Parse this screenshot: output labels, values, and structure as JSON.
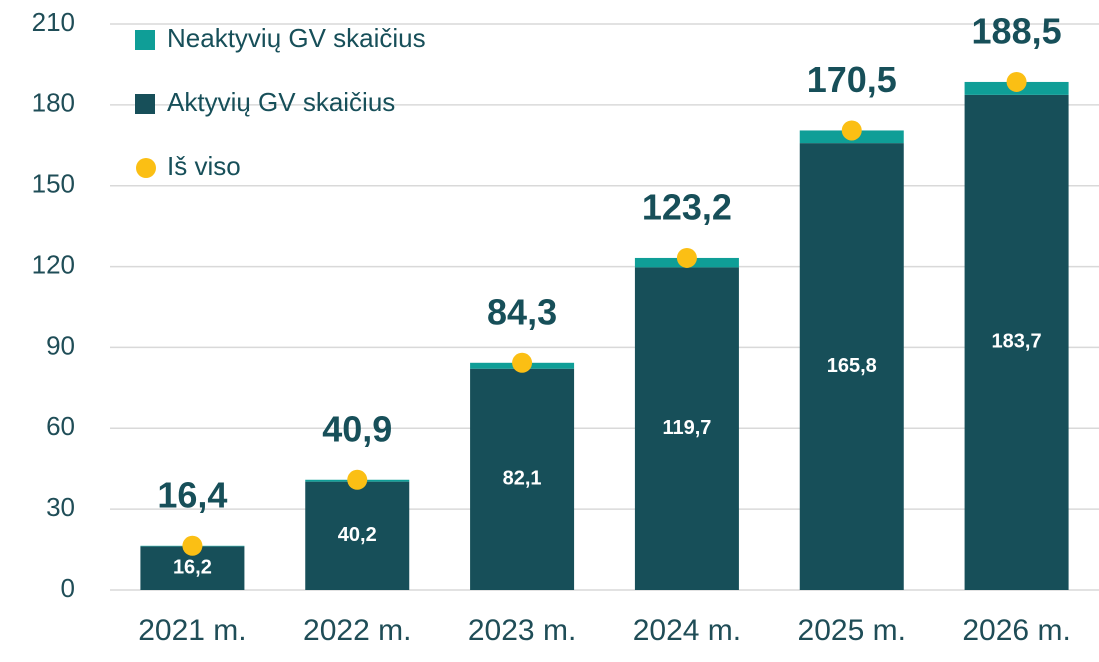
{
  "chart_data": {
    "type": "bar",
    "stacked": true,
    "categories": [
      "2021 m.",
      "2022 m.",
      "2023 m.",
      "2024 m.",
      "2025 m.",
      "2026 m."
    ],
    "series": [
      {
        "name": "Neaktyvių GV skaičius",
        "color": "#0f9e97",
        "values": [
          0.2,
          0.7,
          2.2,
          3.5,
          4.7,
          4.8
        ]
      },
      {
        "name": "Aktyvių GV skaičius",
        "color": "#174f59",
        "values": [
          16.2,
          40.2,
          82.1,
          119.7,
          165.8,
          183.7
        ],
        "value_labels": [
          "16,2",
          "40,2",
          "82,1",
          "119,7",
          "165,8",
          "183,7"
        ]
      },
      {
        "name": "Iš viso",
        "color": "#fbbf14",
        "type": "dot",
        "values": [
          16.4,
          40.9,
          84.3,
          123.2,
          170.5,
          188.5
        ],
        "value_labels": [
          "16,4",
          "40,9",
          "84,3",
          "123,2",
          "170,5",
          "188,5"
        ]
      }
    ],
    "ylim": [
      0,
      210
    ],
    "yticks": [
      0,
      30,
      60,
      90,
      120,
      150,
      180,
      210
    ],
    "grid": true,
    "legend": "top-left"
  }
}
